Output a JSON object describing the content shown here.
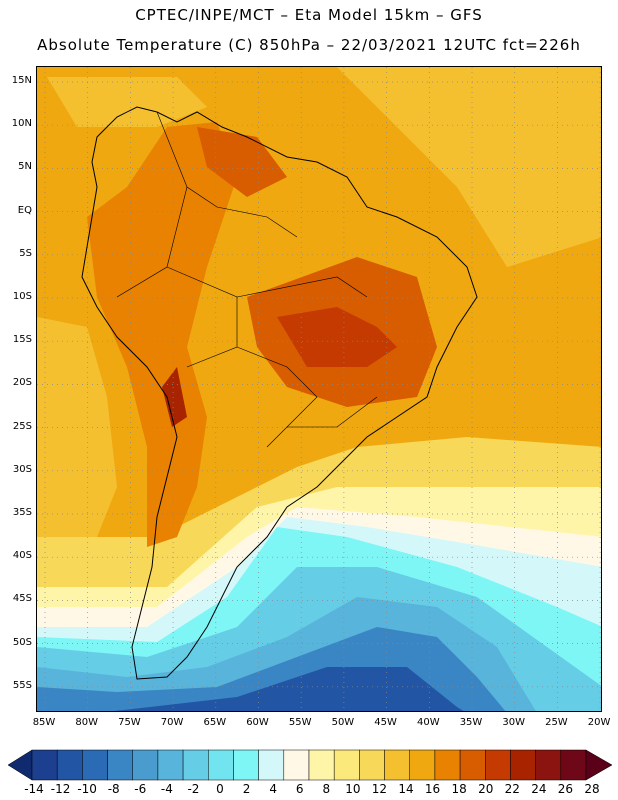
{
  "header": {
    "line1": "CPTEC/INPE/MCT –  Eta Model 15km – GFS",
    "line2": "Absolute Temperature (C) 850hPa – 22/03/2021 12UTC fct=226h"
  },
  "map": {
    "lat_labels": [
      "15N",
      "10N",
      "5N",
      "EQ",
      "5S",
      "10S",
      "15S",
      "20S",
      "25S",
      "30S",
      "35S",
      "40S",
      "45S",
      "50S",
      "55S"
    ],
    "lon_labels": [
      "85W",
      "80W",
      "75W",
      "70W",
      "65W",
      "60W",
      "55W",
      "50W",
      "45W",
      "40W",
      "35W",
      "30W",
      "25W",
      "20W"
    ]
  },
  "colorbar": {
    "labels": [
      "-14",
      "-12",
      "-10",
      "-8",
      "-6",
      "-4",
      "-2",
      "0",
      "2",
      "4",
      "6",
      "8",
      "10",
      "12",
      "14",
      "16",
      "18",
      "20",
      "22",
      "24",
      "26",
      "28"
    ],
    "colors": [
      "#1c3f8f",
      "#2256a5",
      "#2b6bb5",
      "#3a86c4",
      "#4a9ccf",
      "#58b4db",
      "#66cde6",
      "#72e4ef",
      "#7ef6f6",
      "#d4f8fa",
      "#fff8e6",
      "#fff5a8",
      "#fce97c",
      "#f8d858",
      "#f4c030",
      "#f0a810",
      "#e88200",
      "#d85c00",
      "#c43a00",
      "#a82400",
      "#8c1410",
      "#6e0818"
    ],
    "min_arrow_color": "#102a70",
    "max_arrow_color": "#5a0018"
  }
}
